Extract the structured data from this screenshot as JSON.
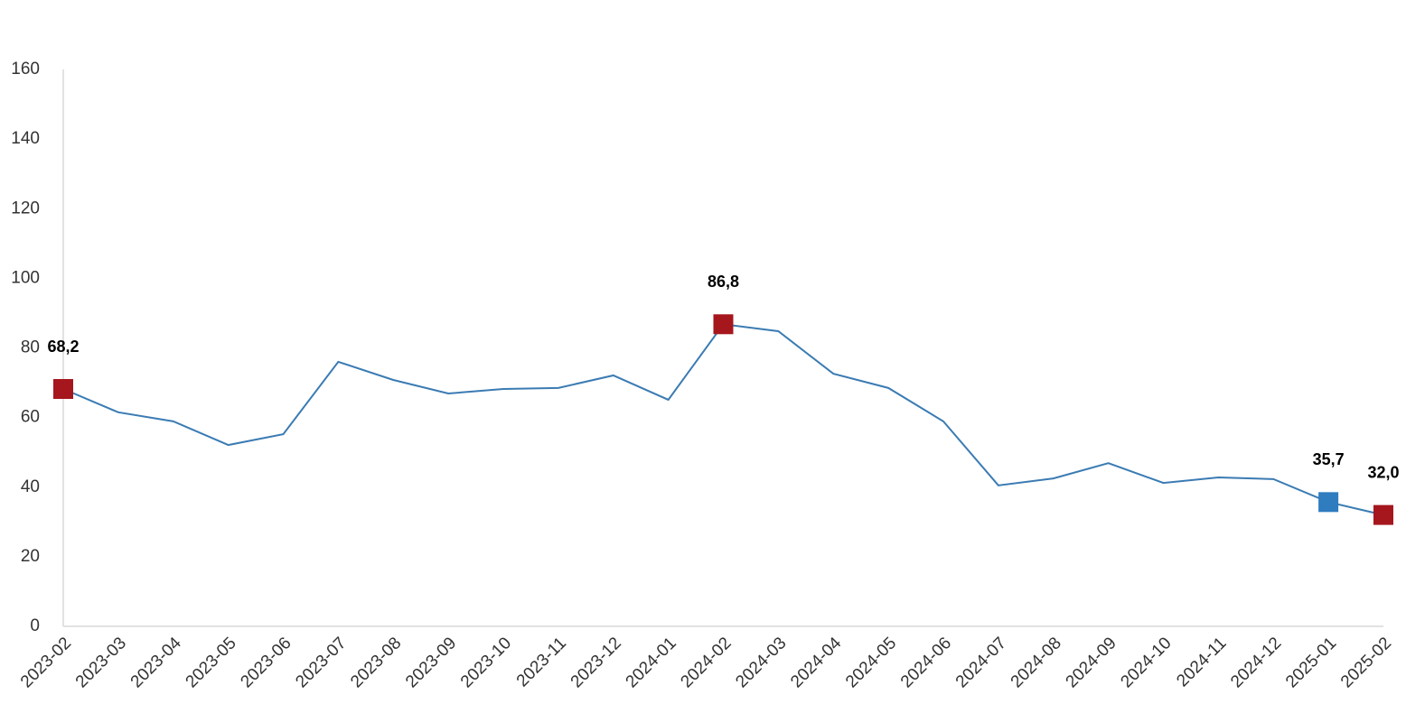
{
  "chart_data": {
    "type": "line",
    "categories": [
      "2023-02",
      "2023-03",
      "2023-04",
      "2023-05",
      "2023-06",
      "2023-07",
      "2023-08",
      "2023-09",
      "2023-10",
      "2023-11",
      "2023-12",
      "2024-01",
      "2024-02",
      "2024-03",
      "2024-04",
      "2024-05",
      "2024-06",
      "2024-07",
      "2024-08",
      "2024-09",
      "2024-10",
      "2024-11",
      "2024-12",
      "2025-01",
      "2025-02"
    ],
    "values": [
      68.2,
      61.5,
      58.9,
      52.1,
      55.2,
      76.0,
      70.8,
      66.9,
      68.2,
      68.5,
      72.1,
      65.1,
      86.8,
      84.8,
      72.6,
      68.5,
      58.9,
      40.5,
      42.5,
      46.9,
      41.2,
      42.8,
      42.3,
      35.7,
      32.0
    ],
    "value_labels": [
      "68,2",
      null,
      null,
      null,
      null,
      null,
      null,
      null,
      null,
      null,
      null,
      null,
      "86,8",
      null,
      null,
      null,
      null,
      null,
      null,
      null,
      null,
      null,
      null,
      "35,7",
      "32,0"
    ],
    "marker_colors": [
      "#a6161d",
      null,
      null,
      null,
      null,
      null,
      null,
      null,
      null,
      null,
      null,
      null,
      "#a6161d",
      null,
      null,
      null,
      null,
      null,
      null,
      null,
      null,
      null,
      null,
      "#2f7cbf",
      "#a6161d"
    ],
    "color": "#3a7bb3",
    "ylim": [
      0,
      160
    ],
    "yticks": [
      0,
      20,
      40,
      60,
      80,
      100,
      120,
      140,
      160
    ],
    "grid": false
  }
}
